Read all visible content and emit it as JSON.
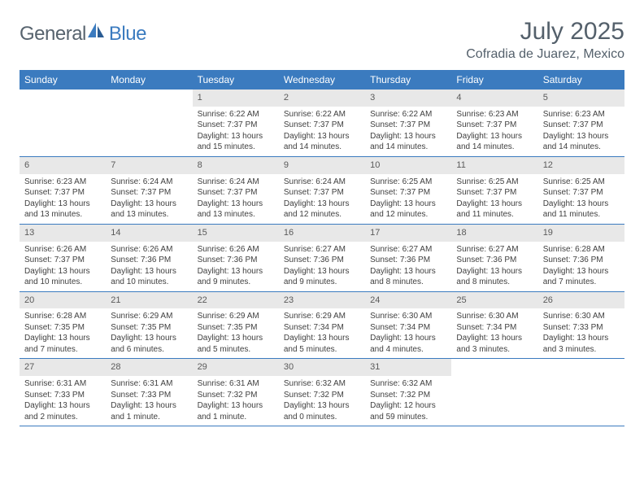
{
  "brand": {
    "part1": "General",
    "part2": "Blue"
  },
  "title": "July 2025",
  "location": "Cofradia de Juarez, Mexico",
  "colors": {
    "header_bar": "#3b7bbf",
    "daynum_bg": "#e8e8e8",
    "text": "#3f3f3f",
    "title_text": "#54606b"
  },
  "day_names": [
    "Sunday",
    "Monday",
    "Tuesday",
    "Wednesday",
    "Thursday",
    "Friday",
    "Saturday"
  ],
  "weeks": [
    [
      {
        "n": "",
        "lines": []
      },
      {
        "n": "",
        "lines": []
      },
      {
        "n": "1",
        "lines": [
          "Sunrise: 6:22 AM",
          "Sunset: 7:37 PM",
          "Daylight: 13 hours",
          "and 15 minutes."
        ]
      },
      {
        "n": "2",
        "lines": [
          "Sunrise: 6:22 AM",
          "Sunset: 7:37 PM",
          "Daylight: 13 hours",
          "and 14 minutes."
        ]
      },
      {
        "n": "3",
        "lines": [
          "Sunrise: 6:22 AM",
          "Sunset: 7:37 PM",
          "Daylight: 13 hours",
          "and 14 minutes."
        ]
      },
      {
        "n": "4",
        "lines": [
          "Sunrise: 6:23 AM",
          "Sunset: 7:37 PM",
          "Daylight: 13 hours",
          "and 14 minutes."
        ]
      },
      {
        "n": "5",
        "lines": [
          "Sunrise: 6:23 AM",
          "Sunset: 7:37 PM",
          "Daylight: 13 hours",
          "and 14 minutes."
        ]
      }
    ],
    [
      {
        "n": "6",
        "lines": [
          "Sunrise: 6:23 AM",
          "Sunset: 7:37 PM",
          "Daylight: 13 hours",
          "and 13 minutes."
        ]
      },
      {
        "n": "7",
        "lines": [
          "Sunrise: 6:24 AM",
          "Sunset: 7:37 PM",
          "Daylight: 13 hours",
          "and 13 minutes."
        ]
      },
      {
        "n": "8",
        "lines": [
          "Sunrise: 6:24 AM",
          "Sunset: 7:37 PM",
          "Daylight: 13 hours",
          "and 13 minutes."
        ]
      },
      {
        "n": "9",
        "lines": [
          "Sunrise: 6:24 AM",
          "Sunset: 7:37 PM",
          "Daylight: 13 hours",
          "and 12 minutes."
        ]
      },
      {
        "n": "10",
        "lines": [
          "Sunrise: 6:25 AM",
          "Sunset: 7:37 PM",
          "Daylight: 13 hours",
          "and 12 minutes."
        ]
      },
      {
        "n": "11",
        "lines": [
          "Sunrise: 6:25 AM",
          "Sunset: 7:37 PM",
          "Daylight: 13 hours",
          "and 11 minutes."
        ]
      },
      {
        "n": "12",
        "lines": [
          "Sunrise: 6:25 AM",
          "Sunset: 7:37 PM",
          "Daylight: 13 hours",
          "and 11 minutes."
        ]
      }
    ],
    [
      {
        "n": "13",
        "lines": [
          "Sunrise: 6:26 AM",
          "Sunset: 7:37 PM",
          "Daylight: 13 hours",
          "and 10 minutes."
        ]
      },
      {
        "n": "14",
        "lines": [
          "Sunrise: 6:26 AM",
          "Sunset: 7:36 PM",
          "Daylight: 13 hours",
          "and 10 minutes."
        ]
      },
      {
        "n": "15",
        "lines": [
          "Sunrise: 6:26 AM",
          "Sunset: 7:36 PM",
          "Daylight: 13 hours",
          "and 9 minutes."
        ]
      },
      {
        "n": "16",
        "lines": [
          "Sunrise: 6:27 AM",
          "Sunset: 7:36 PM",
          "Daylight: 13 hours",
          "and 9 minutes."
        ]
      },
      {
        "n": "17",
        "lines": [
          "Sunrise: 6:27 AM",
          "Sunset: 7:36 PM",
          "Daylight: 13 hours",
          "and 8 minutes."
        ]
      },
      {
        "n": "18",
        "lines": [
          "Sunrise: 6:27 AM",
          "Sunset: 7:36 PM",
          "Daylight: 13 hours",
          "and 8 minutes."
        ]
      },
      {
        "n": "19",
        "lines": [
          "Sunrise: 6:28 AM",
          "Sunset: 7:36 PM",
          "Daylight: 13 hours",
          "and 7 minutes."
        ]
      }
    ],
    [
      {
        "n": "20",
        "lines": [
          "Sunrise: 6:28 AM",
          "Sunset: 7:35 PM",
          "Daylight: 13 hours",
          "and 7 minutes."
        ]
      },
      {
        "n": "21",
        "lines": [
          "Sunrise: 6:29 AM",
          "Sunset: 7:35 PM",
          "Daylight: 13 hours",
          "and 6 minutes."
        ]
      },
      {
        "n": "22",
        "lines": [
          "Sunrise: 6:29 AM",
          "Sunset: 7:35 PM",
          "Daylight: 13 hours",
          "and 5 minutes."
        ]
      },
      {
        "n": "23",
        "lines": [
          "Sunrise: 6:29 AM",
          "Sunset: 7:34 PM",
          "Daylight: 13 hours",
          "and 5 minutes."
        ]
      },
      {
        "n": "24",
        "lines": [
          "Sunrise: 6:30 AM",
          "Sunset: 7:34 PM",
          "Daylight: 13 hours",
          "and 4 minutes."
        ]
      },
      {
        "n": "25",
        "lines": [
          "Sunrise: 6:30 AM",
          "Sunset: 7:34 PM",
          "Daylight: 13 hours",
          "and 3 minutes."
        ]
      },
      {
        "n": "26",
        "lines": [
          "Sunrise: 6:30 AM",
          "Sunset: 7:33 PM",
          "Daylight: 13 hours",
          "and 3 minutes."
        ]
      }
    ],
    [
      {
        "n": "27",
        "lines": [
          "Sunrise: 6:31 AM",
          "Sunset: 7:33 PM",
          "Daylight: 13 hours",
          "and 2 minutes."
        ]
      },
      {
        "n": "28",
        "lines": [
          "Sunrise: 6:31 AM",
          "Sunset: 7:33 PM",
          "Daylight: 13 hours",
          "and 1 minute."
        ]
      },
      {
        "n": "29",
        "lines": [
          "Sunrise: 6:31 AM",
          "Sunset: 7:32 PM",
          "Daylight: 13 hours",
          "and 1 minute."
        ]
      },
      {
        "n": "30",
        "lines": [
          "Sunrise: 6:32 AM",
          "Sunset: 7:32 PM",
          "Daylight: 13 hours",
          "and 0 minutes."
        ]
      },
      {
        "n": "31",
        "lines": [
          "Sunrise: 6:32 AM",
          "Sunset: 7:32 PM",
          "Daylight: 12 hours",
          "and 59 minutes."
        ]
      },
      {
        "n": "",
        "lines": []
      },
      {
        "n": "",
        "lines": []
      }
    ]
  ]
}
